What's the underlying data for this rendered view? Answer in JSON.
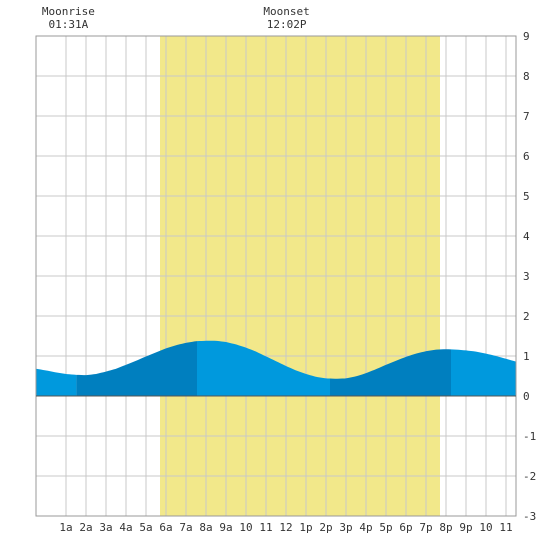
{
  "chart_data": {
    "type": "area",
    "title": "",
    "xlabel": "",
    "ylabel": "",
    "xlim": [
      -0.5,
      23.5
    ],
    "ylim": [
      -3,
      9
    ],
    "grid": true,
    "x_ticks": [
      {
        "x": 1,
        "label": "1a"
      },
      {
        "x": 2,
        "label": "2a"
      },
      {
        "x": 3,
        "label": "3a"
      },
      {
        "x": 4,
        "label": "4a"
      },
      {
        "x": 5,
        "label": "5a"
      },
      {
        "x": 6,
        "label": "6a"
      },
      {
        "x": 7,
        "label": "7a"
      },
      {
        "x": 8,
        "label": "8a"
      },
      {
        "x": 9,
        "label": "9a"
      },
      {
        "x": 10,
        "label": "10"
      },
      {
        "x": 11,
        "label": "11"
      },
      {
        "x": 12,
        "label": "12"
      },
      {
        "x": 13,
        "label": "1p"
      },
      {
        "x": 14,
        "label": "2p"
      },
      {
        "x": 15,
        "label": "3p"
      },
      {
        "x": 16,
        "label": "4p"
      },
      {
        "x": 17,
        "label": "5p"
      },
      {
        "x": 18,
        "label": "6p"
      },
      {
        "x": 19,
        "label": "7p"
      },
      {
        "x": 20,
        "label": "8p"
      },
      {
        "x": 21,
        "label": "9p"
      },
      {
        "x": 22,
        "label": "10"
      },
      {
        "x": 23,
        "label": "11"
      }
    ],
    "y_ticks": [
      -3,
      -2,
      -1,
      0,
      1,
      2,
      3,
      4,
      5,
      6,
      7,
      8,
      9
    ],
    "daylight": {
      "start": 5.7,
      "end": 19.7,
      "color": "#f2e88a"
    },
    "moon": {
      "rise_label": "Moonrise",
      "rise_time": "01:31A",
      "rise_x": 1.52,
      "set_label": "Moonset",
      "set_time": "12:02P",
      "set_x": 12.03
    },
    "series": [
      {
        "x": [
          -0.5,
          0,
          0.5,
          1,
          1.5,
          2,
          2.5,
          3,
          3.5,
          4,
          4.5,
          5,
          5.5,
          6,
          6.5,
          7,
          7.5,
          8,
          8.5,
          9,
          9.5,
          10,
          10.5,
          11,
          11.5,
          12,
          12.5,
          13,
          13.5,
          14,
          14.5,
          15,
          15.5,
          16,
          16.5,
          17,
          17.5,
          18,
          18.5,
          19,
          19.5,
          20,
          20.5,
          21,
          21.5,
          22,
          22.5,
          23,
          23.5
        ],
        "values": [
          0.68,
          0.64,
          0.59,
          0.55,
          0.53,
          0.52,
          0.55,
          0.61,
          0.68,
          0.78,
          0.88,
          0.99,
          1.09,
          1.19,
          1.27,
          1.33,
          1.37,
          1.38,
          1.38,
          1.35,
          1.29,
          1.21,
          1.11,
          0.99,
          0.87,
          0.75,
          0.64,
          0.55,
          0.48,
          0.44,
          0.43,
          0.44,
          0.49,
          0.57,
          0.67,
          0.78,
          0.88,
          0.98,
          1.06,
          1.12,
          1.16,
          1.17,
          1.16,
          1.14,
          1.11,
          1.06,
          1.0,
          0.93,
          0.86
        ]
      }
    ],
    "bands": [
      {
        "start": -0.5,
        "end": 1.52,
        "color": "#0099dd"
      },
      {
        "start": 1.52,
        "end": 7.55,
        "color": "#007fbf"
      },
      {
        "start": 7.55,
        "end": 14.2,
        "color": "#0099dd"
      },
      {
        "start": 14.2,
        "end": 20.25,
        "color": "#007fbf"
      },
      {
        "start": 20.25,
        "end": 23.5,
        "color": "#0099dd"
      }
    ],
    "colors": {
      "grid": "#c8c8c8",
      "border": "#999999",
      "zero_line": "#555555"
    }
  }
}
